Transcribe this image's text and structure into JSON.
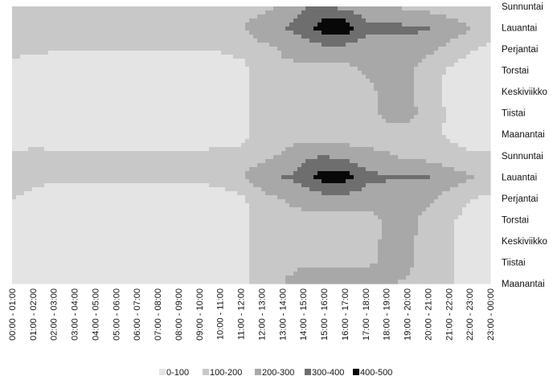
{
  "chart_data": {
    "type": "heatmap",
    "chart_style": "contour",
    "categories": [
      "00:00 - 01:00",
      "01:00 - 02:00",
      "02:00 - 03:00",
      "03:00 - 04:00",
      "04:00 - 05:00",
      "05:00 - 06:00",
      "06:00 - 07:00",
      "07:00 - 08:00",
      "08:00 - 09:00",
      "09:00 - 10:00",
      "10:00 - 11:00",
      "11:00 - 12:00",
      "12:00 - 13:00",
      "13:00 - 14:00",
      "14:00 - 15:00",
      "15:00 - 16:00",
      "16:00 - 17:00",
      "17:00 - 18:00",
      "18:00 - 19:00",
      "19:00 - 20:00",
      "20:00 - 21:00",
      "21:00 - 22:00",
      "22:00 - 23:00",
      "23:00 - 00:00"
    ],
    "y_labels": [
      "Maanantai",
      "Tiistai",
      "Keskiviikko",
      "Torstai",
      "Perjantai",
      "Lauantai",
      "Sunnuntai",
      "Maanantai",
      "Tiistai",
      "Keskiviikko",
      "Torstai",
      "Perjantai",
      "Lauantai",
      "Sunnuntai"
    ],
    "bands": [
      {
        "label": "0-100",
        "color": "#e4e4e4"
      },
      {
        "label": "100-200",
        "color": "#c8c8c8"
      },
      {
        "label": "200-300",
        "color": "#a8a8a8"
      },
      {
        "label": "300-400",
        "color": "#6e6e6e"
      },
      {
        "label": "400-500",
        "color": "#080808"
      }
    ],
    "values": [
      [
        25,
        35,
        35,
        35,
        35,
        35,
        35,
        35,
        35,
        35,
        35,
        50,
        170,
        200,
        230,
        245,
        245,
        245,
        210,
        190,
        160,
        110,
        60,
        50
      ],
      [
        25,
        35,
        35,
        35,
        35,
        35,
        35,
        35,
        35,
        35,
        35,
        50,
        160,
        180,
        190,
        190,
        190,
        190,
        210,
        220,
        160,
        110,
        60,
        50
      ],
      [
        25,
        35,
        35,
        35,
        35,
        35,
        35,
        35,
        35,
        35,
        35,
        50,
        150,
        170,
        180,
        180,
        180,
        180,
        210,
        220,
        170,
        110,
        60,
        50
      ],
      [
        25,
        35,
        35,
        35,
        35,
        35,
        35,
        35,
        35,
        35,
        35,
        55,
        150,
        160,
        160,
        160,
        160,
        160,
        210,
        230,
        170,
        120,
        60,
        50
      ],
      [
        110,
        60,
        45,
        45,
        45,
        45,
        45,
        45,
        45,
        45,
        45,
        80,
        170,
        200,
        250,
        260,
        260,
        250,
        260,
        250,
        220,
        160,
        110,
        80
      ],
      [
        150,
        145,
        120,
        120,
        120,
        120,
        120,
        120,
        120,
        120,
        150,
        190,
        260,
        300,
        330,
        450,
        450,
        330,
        310,
        300,
        310,
        260,
        210,
        150
      ],
      [
        120,
        130,
        125,
        125,
        125,
        125,
        125,
        125,
        125,
        125,
        130,
        150,
        170,
        210,
        280,
        300,
        260,
        240,
        210,
        180,
        160,
        130,
        120,
        110
      ],
      [
        30,
        40,
        40,
        40,
        40,
        40,
        40,
        40,
        40,
        40,
        40,
        50,
        160,
        160,
        150,
        150,
        150,
        120,
        160,
        160,
        120,
        90,
        50,
        40
      ],
      [
        30,
        40,
        40,
        40,
        40,
        40,
        40,
        40,
        40,
        40,
        40,
        50,
        160,
        180,
        150,
        140,
        150,
        140,
        230,
        240,
        150,
        90,
        50,
        40
      ],
      [
        30,
        40,
        40,
        40,
        40,
        40,
        40,
        40,
        40,
        40,
        40,
        50,
        150,
        180,
        160,
        160,
        150,
        160,
        240,
        240,
        130,
        80,
        50,
        40
      ],
      [
        30,
        40,
        40,
        40,
        40,
        40,
        40,
        40,
        40,
        40,
        40,
        50,
        160,
        180,
        170,
        170,
        170,
        210,
        250,
        230,
        140,
        90,
        50,
        40
      ],
      [
        150,
        120,
        110,
        110,
        110,
        110,
        110,
        110,
        110,
        110,
        110,
        140,
        170,
        210,
        250,
        260,
        260,
        250,
        260,
        260,
        230,
        170,
        110,
        80
      ],
      [
        150,
        140,
        130,
        130,
        130,
        130,
        130,
        130,
        130,
        130,
        150,
        190,
        260,
        300,
        340,
        460,
        470,
        330,
        320,
        320,
        310,
        260,
        210,
        150
      ],
      [
        120,
        130,
        125,
        125,
        125,
        125,
        125,
        125,
        125,
        125,
        130,
        150,
        170,
        210,
        290,
        310,
        270,
        240,
        210,
        180,
        160,
        130,
        120,
        110
      ]
    ]
  }
}
